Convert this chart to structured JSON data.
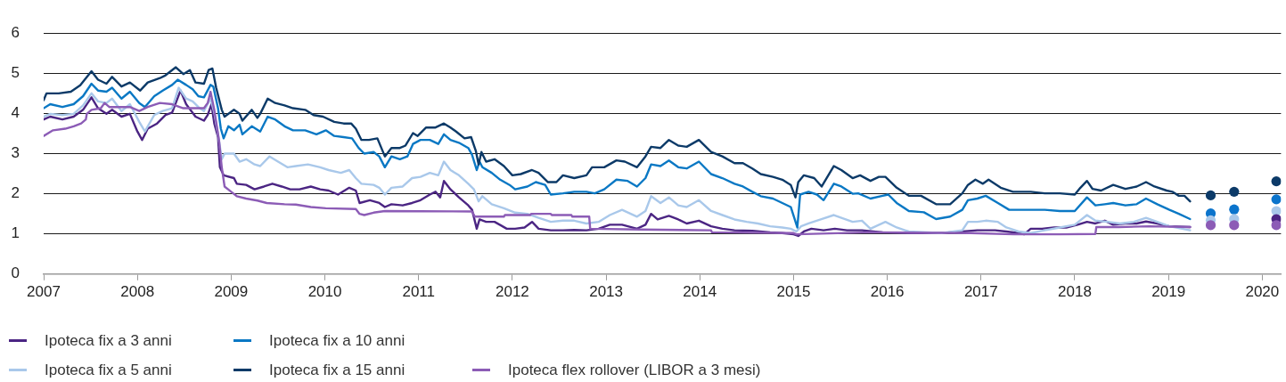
{
  "chart_data": {
    "type": "line",
    "xlim": [
      2007,
      2020.2
    ],
    "xticks": [
      2007,
      2008,
      2009,
      2010,
      2011,
      2012,
      2013,
      2014,
      2015,
      2016,
      2017,
      2018,
      2019,
      2020
    ],
    "ylim": [
      0,
      6
    ],
    "yticks": [
      0,
      1,
      2,
      3,
      4,
      5,
      6
    ],
    "grid": "y",
    "legend": "bottom left",
    "series": [
      {
        "name": "Ipoteca fix a 3 anni",
        "color": "#4b2583",
        "x": [
          2007.0,
          2007.07,
          2007.2,
          2007.32,
          2007.42,
          2007.51,
          2007.58,
          2007.67,
          2007.73,
          2007.83,
          2007.92,
          2008.0,
          2008.05,
          2008.11,
          2008.21,
          2008.3,
          2008.37,
          2008.46,
          2008.52,
          2008.62,
          2008.71,
          2008.75,
          2008.79,
          2008.82,
          2008.86,
          2008.88,
          2008.92,
          2009.03,
          2009.06,
          2009.16,
          2009.25,
          2009.35,
          2009.44,
          2009.54,
          2009.63,
          2009.73,
          2009.85,
          2009.95,
          2010.04,
          2010.14,
          2010.26,
          2010.33,
          2010.37,
          2010.48,
          2010.58,
          2010.64,
          2010.71,
          2010.83,
          2010.93,
          2011.02,
          2011.12,
          2011.18,
          2011.23,
          2011.27,
          2011.34,
          2011.43,
          2011.53,
          2011.57,
          2011.62,
          2011.65,
          2011.72,
          2011.81,
          2011.94,
          2012.03,
          2012.13,
          2012.21,
          2012.28,
          2012.41,
          2012.54,
          2012.66,
          2012.79,
          2012.92,
          2013.04,
          2013.17,
          2013.33,
          2013.42,
          2013.48,
          2013.55,
          2013.67,
          2013.77,
          2013.86,
          2013.99,
          2014.12,
          2014.24,
          2014.37,
          2014.56,
          2014.75,
          2014.88,
          2015.0,
          2015.05,
          2015.11,
          2015.19,
          2015.32,
          2015.44,
          2015.57,
          2015.73,
          2015.95,
          2016.26,
          2016.58,
          2016.8,
          2016.96,
          2017.15,
          2017.27,
          2017.4,
          2017.46,
          2017.53,
          2017.65,
          2017.78,
          2017.91,
          2018.03,
          2018.13,
          2018.22,
          2018.32,
          2018.41,
          2018.54,
          2018.66,
          2018.76,
          2018.88,
          2019.01,
          2019.23
        ],
        "values": [
          3.85,
          3.92,
          3.85,
          3.92,
          4.09,
          4.4,
          4.13,
          3.99,
          4.09,
          3.92,
          3.99,
          3.55,
          3.34,
          3.62,
          3.75,
          3.96,
          4.02,
          4.57,
          4.23,
          3.92,
          3.82,
          3.96,
          4.23,
          3.75,
          3.41,
          2.66,
          2.46,
          2.39,
          2.25,
          2.22,
          2.11,
          2.18,
          2.25,
          2.18,
          2.11,
          2.11,
          2.18,
          2.11,
          2.08,
          1.98,
          2.15,
          2.08,
          1.77,
          1.84,
          1.77,
          1.67,
          1.74,
          1.71,
          1.77,
          1.84,
          1.98,
          2.05,
          1.91,
          2.32,
          2.11,
          1.91,
          1.71,
          1.6,
          1.13,
          1.36,
          1.3,
          1.3,
          1.13,
          1.13,
          1.16,
          1.3,
          1.13,
          1.09,
          1.09,
          1.1,
          1.09,
          1.13,
          1.23,
          1.23,
          1.13,
          1.23,
          1.5,
          1.36,
          1.45,
          1.36,
          1.26,
          1.33,
          1.19,
          1.13,
          1.09,
          1.08,
          1.04,
          1.02,
          0.99,
          0.95,
          1.06,
          1.13,
          1.09,
          1.13,
          1.09,
          1.09,
          1.04,
          1.02,
          1.02,
          1.06,
          1.09,
          1.09,
          1.06,
          1.02,
          0.99,
          1.13,
          1.13,
          1.16,
          1.16,
          1.23,
          1.3,
          1.26,
          1.33,
          1.23,
          1.26,
          1.26,
          1.31,
          1.26,
          1.19,
          1.17
        ]
      },
      {
        "name": "Ipoteca fix a 5 anni",
        "color": "#a9c8ea",
        "x": [
          2007.0,
          2007.07,
          2007.2,
          2007.32,
          2007.42,
          2007.51,
          2007.58,
          2007.67,
          2007.73,
          2007.83,
          2007.92,
          2008.02,
          2008.08,
          2008.18,
          2008.27,
          2008.37,
          2008.44,
          2008.52,
          2008.59,
          2008.65,
          2008.71,
          2008.78,
          2008.82,
          2008.87,
          2008.9,
          2008.93,
          2009.03,
          2009.09,
          2009.16,
          2009.25,
          2009.31,
          2009.41,
          2009.5,
          2009.6,
          2009.69,
          2009.82,
          2009.95,
          2010.04,
          2010.17,
          2010.26,
          2010.33,
          2010.39,
          2010.52,
          2010.58,
          2010.64,
          2010.71,
          2010.83,
          2010.93,
          2011.02,
          2011.12,
          2011.21,
          2011.27,
          2011.34,
          2011.43,
          2011.53,
          2011.59,
          2011.64,
          2011.68,
          2011.78,
          2011.91,
          2012.03,
          2012.16,
          2012.28,
          2012.41,
          2012.54,
          2012.66,
          2012.79,
          2012.92,
          2013.04,
          2013.17,
          2013.33,
          2013.42,
          2013.48,
          2013.58,
          2013.67,
          2013.77,
          2013.86,
          2013.99,
          2014.12,
          2014.24,
          2014.37,
          2014.5,
          2014.62,
          2014.75,
          2014.88,
          2014.97,
          2015.03,
          2015.08,
          2015.16,
          2015.29,
          2015.43,
          2015.51,
          2015.63,
          2015.73,
          2015.82,
          2015.98,
          2016.1,
          2016.23,
          2016.58,
          2016.8,
          2016.86,
          2016.96,
          2017.05,
          2017.18,
          2017.27,
          2017.4,
          2017.53,
          2017.68,
          2017.84,
          2018.0,
          2018.13,
          2018.22,
          2018.35,
          2018.48,
          2018.63,
          2018.76,
          2018.88,
          2019.01,
          2019.23
        ],
        "values": [
          3.92,
          3.99,
          3.96,
          3.99,
          4.2,
          4.5,
          4.3,
          4.26,
          4.37,
          4.06,
          4.23,
          3.79,
          3.55,
          3.96,
          4.06,
          4.13,
          4.64,
          4.37,
          4.3,
          4.16,
          4.06,
          4.37,
          4.02,
          3.34,
          2.86,
          3.0,
          3.0,
          2.8,
          2.86,
          2.73,
          2.69,
          2.93,
          2.8,
          2.66,
          2.69,
          2.73,
          2.66,
          2.59,
          2.52,
          2.59,
          2.39,
          2.25,
          2.22,
          2.15,
          1.98,
          2.15,
          2.18,
          2.39,
          2.42,
          2.52,
          2.46,
          2.8,
          2.59,
          2.46,
          2.25,
          2.11,
          1.81,
          1.94,
          1.74,
          1.64,
          1.53,
          1.5,
          1.4,
          1.3,
          1.33,
          1.33,
          1.26,
          1.3,
          1.47,
          1.6,
          1.43,
          1.57,
          1.94,
          1.77,
          1.91,
          1.71,
          1.67,
          1.84,
          1.57,
          1.47,
          1.36,
          1.3,
          1.26,
          1.19,
          1.16,
          1.13,
          1.06,
          1.19,
          1.26,
          1.36,
          1.47,
          1.4,
          1.3,
          1.33,
          1.13,
          1.3,
          1.16,
          1.06,
          1.02,
          1.09,
          1.3,
          1.3,
          1.33,
          1.3,
          1.16,
          1.06,
          1.02,
          1.09,
          1.16,
          1.23,
          1.47,
          1.33,
          1.3,
          1.26,
          1.3,
          1.4,
          1.3,
          1.19,
          1.09
        ]
      },
      {
        "name": "Ipoteca fix a 10 anni",
        "color": "#0a78c4",
        "x": [
          2007.0,
          2007.07,
          2007.2,
          2007.32,
          2007.42,
          2007.51,
          2007.58,
          2007.67,
          2007.73,
          2007.83,
          2007.92,
          2008.02,
          2008.08,
          2008.18,
          2008.27,
          2008.37,
          2008.43,
          2008.52,
          2008.59,
          2008.65,
          2008.71,
          2008.78,
          2008.81,
          2008.86,
          2008.89,
          2008.92,
          2008.97,
          2009.03,
          2009.09,
          2009.12,
          2009.22,
          2009.31,
          2009.39,
          2009.47,
          2009.57,
          2009.66,
          2009.79,
          2009.91,
          2010.01,
          2010.1,
          2010.2,
          2010.29,
          2010.36,
          2010.42,
          2010.52,
          2010.58,
          2010.64,
          2010.71,
          2010.8,
          2010.88,
          2010.94,
          2011.02,
          2011.12,
          2011.21,
          2011.27,
          2011.34,
          2011.43,
          2011.53,
          2011.57,
          2011.62,
          2011.65,
          2011.68,
          2011.78,
          2011.87,
          2011.97,
          2012.03,
          2012.16,
          2012.25,
          2012.35,
          2012.41,
          2012.54,
          2012.66,
          2012.79,
          2012.88,
          2012.98,
          2013.11,
          2013.23,
          2013.33,
          2013.42,
          2013.48,
          2013.58,
          2013.67,
          2013.77,
          2013.86,
          2013.99,
          2014.12,
          2014.24,
          2014.37,
          2014.46,
          2014.56,
          2014.65,
          2014.78,
          2014.88,
          2014.97,
          2015.04,
          2015.07,
          2015.16,
          2015.25,
          2015.32,
          2015.43,
          2015.51,
          2015.63,
          2015.69,
          2015.82,
          2015.95,
          2016.01,
          2016.1,
          2016.23,
          2016.39,
          2016.52,
          2016.67,
          2016.8,
          2016.86,
          2016.96,
          2017.05,
          2017.18,
          2017.3,
          2017.53,
          2017.68,
          2017.84,
          2018.0,
          2018.13,
          2018.22,
          2018.32,
          2018.41,
          2018.54,
          2018.66,
          2018.76,
          2018.88,
          2019.01,
          2019.11,
          2019.23
        ],
        "values": [
          4.13,
          4.23,
          4.16,
          4.23,
          4.43,
          4.74,
          4.57,
          4.54,
          4.64,
          4.37,
          4.54,
          4.26,
          4.16,
          4.43,
          4.57,
          4.71,
          4.84,
          4.71,
          4.6,
          4.43,
          4.4,
          4.71,
          4.67,
          4.13,
          3.62,
          3.38,
          3.68,
          3.58,
          3.72,
          3.48,
          3.68,
          3.55,
          3.92,
          3.85,
          3.68,
          3.58,
          3.58,
          3.48,
          3.58,
          3.44,
          3.41,
          3.38,
          3.14,
          3.0,
          3.04,
          2.93,
          2.66,
          2.93,
          2.86,
          2.93,
          3.24,
          3.34,
          3.34,
          3.24,
          3.48,
          3.34,
          3.27,
          3.14,
          2.97,
          2.59,
          2.8,
          2.66,
          2.52,
          2.35,
          2.22,
          2.11,
          2.18,
          2.29,
          2.22,
          1.98,
          2.01,
          2.05,
          2.05,
          2.01,
          2.11,
          2.35,
          2.32,
          2.18,
          2.39,
          2.73,
          2.69,
          2.83,
          2.66,
          2.63,
          2.8,
          2.49,
          2.39,
          2.25,
          2.18,
          2.05,
          1.94,
          1.88,
          1.77,
          1.67,
          1.16,
          1.98,
          2.05,
          1.98,
          1.84,
          2.25,
          2.18,
          2.0,
          2.01,
          1.88,
          1.95,
          1.98,
          1.77,
          1.57,
          1.54,
          1.37,
          1.43,
          1.6,
          1.84,
          1.88,
          1.95,
          1.77,
          1.6,
          1.6,
          1.6,
          1.57,
          1.57,
          1.91,
          1.71,
          1.74,
          1.77,
          1.71,
          1.74,
          1.88,
          1.74,
          1.6,
          1.5,
          1.37
        ]
      },
      {
        "name": "Ipoteca fix a 15 anni",
        "color": "#0c3a68",
        "x": [
          2007.0,
          2007.03,
          2007.16,
          2007.29,
          2007.39,
          2007.51,
          2007.58,
          2007.67,
          2007.73,
          2007.83,
          2007.92,
          2008.03,
          2008.11,
          2008.24,
          2008.3,
          2008.37,
          2008.41,
          2008.49,
          2008.56,
          2008.62,
          2008.71,
          2008.76,
          2008.8,
          2008.84,
          2008.9,
          2008.93,
          2009.03,
          2009.09,
          2009.12,
          2009.22,
          2009.28,
          2009.31,
          2009.39,
          2009.47,
          2009.57,
          2009.66,
          2009.79,
          2009.88,
          2009.98,
          2010.1,
          2010.2,
          2010.28,
          2010.33,
          2010.39,
          2010.47,
          2010.56,
          2010.64,
          2010.71,
          2010.8,
          2010.86,
          2010.94,
          2010.99,
          2011.08,
          2011.18,
          2011.27,
          2011.34,
          2011.4,
          2011.49,
          2011.56,
          2011.61,
          2011.64,
          2011.67,
          2011.72,
          2011.81,
          2011.91,
          2012.0,
          2012.09,
          2012.21,
          2012.28,
          2012.38,
          2012.47,
          2012.54,
          2012.66,
          2012.79,
          2012.85,
          2012.98,
          2013.11,
          2013.2,
          2013.33,
          2013.42,
          2013.48,
          2013.58,
          2013.67,
          2013.77,
          2013.86,
          2013.99,
          2014.12,
          2014.24,
          2014.37,
          2014.46,
          2014.56,
          2014.65,
          2014.78,
          2014.88,
          2014.97,
          2015.02,
          2015.05,
          2015.11,
          2015.22,
          2015.3,
          2015.43,
          2015.51,
          2015.63,
          2015.71,
          2015.82,
          2015.91,
          2015.98,
          2016.1,
          2016.23,
          2016.36,
          2016.52,
          2016.67,
          2016.8,
          2016.86,
          2016.94,
          2017.02,
          2017.08,
          2017.21,
          2017.34,
          2017.53,
          2017.68,
          2017.84,
          2018.0,
          2018.06,
          2018.13,
          2018.19,
          2018.28,
          2018.41,
          2018.54,
          2018.66,
          2018.76,
          2018.85,
          2018.98,
          2019.04,
          2019.11,
          2019.17,
          2019.23
        ],
        "values": [
          4.33,
          4.5,
          4.5,
          4.54,
          4.7,
          5.05,
          4.84,
          4.74,
          4.91,
          4.67,
          4.77,
          4.57,
          4.77,
          4.88,
          4.95,
          5.08,
          5.15,
          4.98,
          5.08,
          4.77,
          4.74,
          5.08,
          5.12,
          4.64,
          4.09,
          3.92,
          4.09,
          3.99,
          3.82,
          4.09,
          3.89,
          3.99,
          4.37,
          4.26,
          4.2,
          4.13,
          4.09,
          3.96,
          3.92,
          3.79,
          3.75,
          3.75,
          3.62,
          3.34,
          3.34,
          3.38,
          2.93,
          3.14,
          3.14,
          3.2,
          3.51,
          3.44,
          3.65,
          3.65,
          3.75,
          3.65,
          3.55,
          3.38,
          3.41,
          3.07,
          2.73,
          3.04,
          2.8,
          2.86,
          2.69,
          2.46,
          2.49,
          2.59,
          2.52,
          2.29,
          2.29,
          2.46,
          2.39,
          2.46,
          2.66,
          2.66,
          2.83,
          2.8,
          2.66,
          2.93,
          3.17,
          3.14,
          3.34,
          3.2,
          3.17,
          3.34,
          3.04,
          2.93,
          2.76,
          2.76,
          2.63,
          2.49,
          2.42,
          2.35,
          2.22,
          1.91,
          2.29,
          2.46,
          2.39,
          2.18,
          2.69,
          2.59,
          2.39,
          2.46,
          2.32,
          2.42,
          2.42,
          2.15,
          1.95,
          1.95,
          1.74,
          1.74,
          2.01,
          2.22,
          2.35,
          2.25,
          2.35,
          2.15,
          2.05,
          2.05,
          2.01,
          2.01,
          1.98,
          2.15,
          2.32,
          2.12,
          2.08,
          2.22,
          2.12,
          2.18,
          2.29,
          2.18,
          2.08,
          2.05,
          1.95,
          1.95,
          1.81
        ]
      },
      {
        "name": "Ipoteca flex rollover (LIBOR a 3 mesi)",
        "color": "#8c5cb6",
        "x": [
          2007.0,
          2007.1,
          2007.23,
          2007.32,
          2007.4,
          2007.45,
          2007.46,
          2007.51,
          2007.61,
          2007.65,
          2007.7,
          2007.92,
          2008.02,
          2008.11,
          2008.24,
          2008.37,
          2008.49,
          2008.71,
          2008.75,
          2008.78,
          2008.82,
          2008.87,
          2008.9,
          2008.93,
          2009.0,
          2009.06,
          2009.16,
          2009.28,
          2009.38,
          2009.57,
          2009.69,
          2009.85,
          2010.01,
          2010.33,
          2010.37,
          2010.42,
          2010.52,
          2010.64,
          2011.57,
          2011.6,
          2011.91,
          2011.92,
          2012.19,
          2012.2,
          2012.41,
          2012.42,
          2012.63,
          2012.64,
          2012.82,
          2012.83,
          2013.36,
          2014.12,
          2014.13,
          2015.0,
          2015.03,
          2015.82,
          2016.89,
          2017.35,
          2017.84,
          2018.22,
          2018.23,
          2018.47,
          2018.79,
          2019.23
        ],
        "values": [
          3.44,
          3.58,
          3.62,
          3.68,
          3.75,
          3.85,
          3.99,
          4.09,
          4.13,
          4.26,
          4.16,
          4.16,
          4.06,
          4.16,
          4.26,
          4.23,
          4.13,
          4.13,
          4.26,
          4.54,
          4.09,
          3.34,
          2.66,
          2.18,
          2.05,
          1.94,
          1.88,
          1.83,
          1.77,
          1.74,
          1.73,
          1.67,
          1.64,
          1.62,
          1.5,
          1.47,
          1.53,
          1.57,
          1.56,
          1.43,
          1.43,
          1.47,
          1.47,
          1.5,
          1.5,
          1.47,
          1.47,
          1.43,
          1.43,
          1.13,
          1.11,
          1.09,
          1.04,
          1.02,
          0.99,
          1.04,
          1.02,
          0.99,
          0.99,
          1.0,
          1.17,
          1.17,
          1.19,
          1.17
        ]
      },
      {
        "type": "scatter",
        "marker": "circle",
        "color": "#0c3a68",
        "x": [
          2019.45,
          2019.7,
          2020.15
        ],
        "values": [
          1.96,
          2.05,
          2.31
        ]
      },
      {
        "type": "scatter",
        "marker": "circle",
        "color": "#0b74cc",
        "x": [
          2019.45,
          2019.7,
          2020.15
        ],
        "values": [
          1.51,
          1.61,
          1.86
        ]
      },
      {
        "type": "scatter",
        "marker": "circle",
        "color": "#a9c8ea",
        "x": [
          2019.45,
          2019.7,
          2020.15
        ],
        "values": [
          1.34,
          1.37,
          1.57
        ]
      },
      {
        "type": "scatter",
        "marker": "circle",
        "color": "#4b2583",
        "x": [
          2020.15
        ],
        "values": [
          1.37
        ]
      },
      {
        "type": "scatter",
        "marker": "circle",
        "color": "#8c5cb6",
        "x": [
          2019.45,
          2019.7,
          2020.15
        ],
        "values": [
          1.22,
          1.22,
          1.22
        ]
      }
    ]
  }
}
